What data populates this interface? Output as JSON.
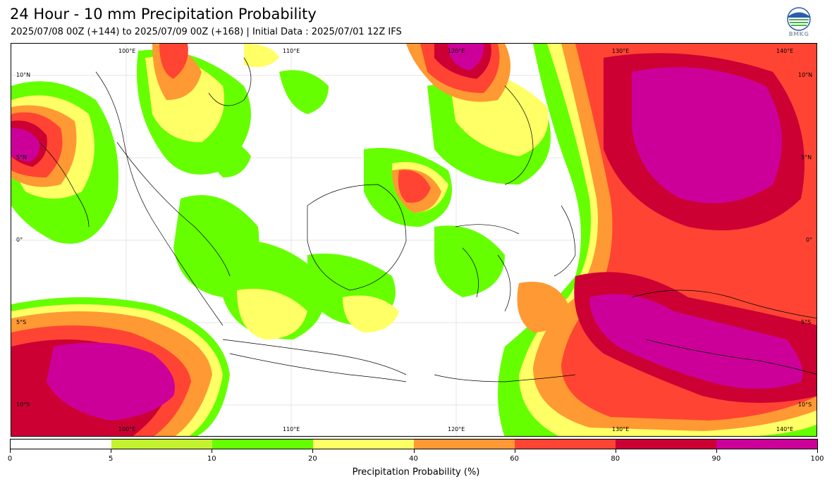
{
  "header": {
    "title": "24 Hour - 10 mm Precipitation Probability",
    "subtitle": "2025/07/08 00Z (+144) to 2025/07/09 00Z (+168) | Initial Data : 2025/07/01 12Z IFS",
    "logo_text": "BMKG"
  },
  "map": {
    "lon_labels": [
      "100°E",
      "110°E",
      "120°E",
      "130°E",
      "140°E"
    ],
    "lat_labels": [
      "10°N",
      "5°N",
      "0°",
      "5°S",
      "10°S"
    ],
    "colors": {
      "land_outline": "#000000",
      "grid": "#d9d9d9"
    }
  },
  "colorbar": {
    "title": "Precipitation Probability (%)",
    "ticks": [
      "0",
      "5",
      "10",
      "20",
      "40",
      "60",
      "80",
      "90",
      "100"
    ],
    "segments": [
      {
        "from": 0,
        "to": 5,
        "color": "#ffffff"
      },
      {
        "from": 5,
        "to": 10,
        "color": "#c3f22e"
      },
      {
        "from": 10,
        "to": 20,
        "color": "#66ff00"
      },
      {
        "from": 20,
        "to": 40,
        "color": "#ffff66"
      },
      {
        "from": 40,
        "to": 60,
        "color": "#ff9933"
      },
      {
        "from": 60,
        "to": 80,
        "color": "#ff4433"
      },
      {
        "from": 80,
        "to": 90,
        "color": "#cc0033"
      },
      {
        "from": 90,
        "to": 100,
        "color": "#cc0099"
      }
    ]
  }
}
